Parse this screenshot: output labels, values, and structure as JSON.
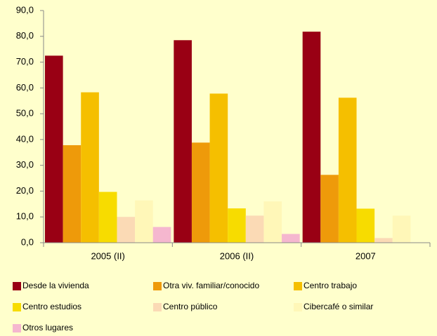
{
  "chart_data": {
    "type": "bar",
    "categories": [
      "2005 (II)",
      "2006 (II)",
      "2007"
    ],
    "series": [
      {
        "name": "Desde la vivienda",
        "color": "#990014",
        "values": [
          72.5,
          78.5,
          81.8
        ]
      },
      {
        "name": "Otra viv. familiar/conocido",
        "color": "#ee9a0a",
        "values": [
          37.8,
          38.8,
          26.3
        ]
      },
      {
        "name": "Centro trabajo",
        "color": "#f5bf00",
        "values": [
          58.3,
          57.8,
          56.2
        ]
      },
      {
        "name": "Centro estudios",
        "color": "#f7dc00",
        "values": [
          19.7,
          13.3,
          13.2
        ]
      },
      {
        "name": "Centro público",
        "color": "#fbdab5",
        "values": [
          10.0,
          10.5,
          1.8
        ]
      },
      {
        "name": "Cibercafé o similar",
        "color": "#fff7b8",
        "values": [
          16.4,
          16.0,
          10.5
        ]
      },
      {
        "name": "Otros lugares",
        "color": "#f5b7cf",
        "values": [
          6.1,
          3.4,
          null
        ]
      }
    ],
    "ylim": [
      0,
      90
    ],
    "yticks": [
      {
        "value": 0,
        "label": "0,0"
      },
      {
        "value": 10,
        "label": "10,0"
      },
      {
        "value": 20,
        "label": "20,0"
      },
      {
        "value": 30,
        "label": "30,0"
      },
      {
        "value": 40,
        "label": "40,0"
      },
      {
        "value": 50,
        "label": "50,0"
      },
      {
        "value": 60,
        "label": "60,0"
      },
      {
        "value": 70,
        "label": "70,0"
      },
      {
        "value": 80,
        "label": "80,0"
      },
      {
        "value": 90,
        "label": "90,0"
      }
    ],
    "grid": false
  }
}
